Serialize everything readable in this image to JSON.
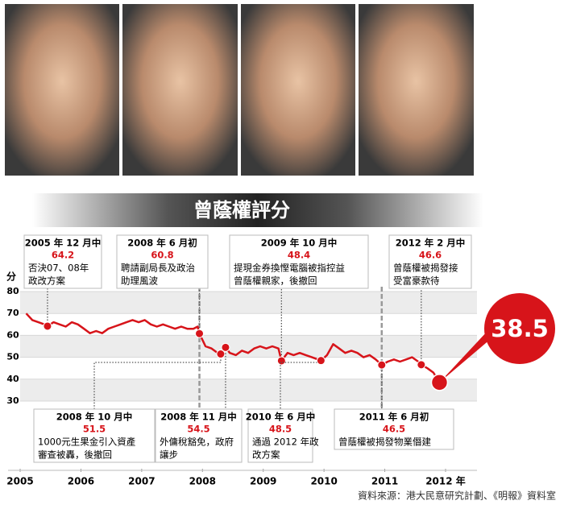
{
  "chart_data": {
    "type": "line",
    "title": "曾蔭權評分",
    "y_label": "分",
    "x": [
      2005.6,
      2005.7,
      2005.8,
      2005.9,
      2005.95,
      2006.05,
      2006.15,
      2006.25,
      2006.35,
      2006.45,
      2006.55,
      2006.65,
      2006.75,
      2006.85,
      2006.95,
      2007.05,
      2007.15,
      2007.25,
      2007.35,
      2007.45,
      2007.55,
      2007.65,
      2007.75,
      2007.85,
      2007.95,
      2008.05,
      2008.15,
      2008.25,
      2008.35,
      2008.42,
      2008.45,
      2008.55,
      2008.65,
      2008.75,
      2008.8,
      2008.88,
      2008.95,
      2009.05,
      2009.15,
      2009.25,
      2009.35,
      2009.45,
      2009.55,
      2009.65,
      2009.75,
      2009.8,
      2009.9,
      2010.0,
      2010.1,
      2010.2,
      2010.3,
      2010.4,
      2010.45,
      2010.55,
      2010.65,
      2010.75,
      2010.85,
      2010.95,
      2011.05,
      2011.15,
      2011.25,
      2011.35,
      2011.45,
      2011.55,
      2011.65,
      2011.75,
      2011.85,
      2011.95,
      2012.05,
      2012.1,
      2012.2,
      2012.3,
      2012.4
    ],
    "series": [
      {
        "color": "#d7141a",
        "values": [
          70,
          67,
          66,
          65,
          64.2,
          66,
          65,
          64,
          66,
          65,
          63,
          61,
          62,
          61,
          63,
          64,
          65,
          66,
          67,
          66,
          67,
          65,
          64,
          65,
          64,
          63,
          64,
          63,
          63,
          64,
          60.8,
          55,
          54,
          52,
          51.5,
          54.5,
          52,
          51,
          53,
          52,
          54,
          55,
          54,
          55,
          54,
          48.4,
          52,
          51,
          52,
          51,
          50,
          49,
          48.5,
          51,
          56,
          54,
          52,
          53,
          52,
          50,
          51,
          49,
          46.5,
          48,
          49,
          48,
          49,
          50,
          48,
          46.6,
          45,
          43,
          38.5
        ]
      }
    ],
    "xlim": [
      2005.5,
      2012.5
    ],
    "xticks": [
      {
        "value": 2005.5,
        "label": "2005"
      },
      {
        "value": 2006.5,
        "label": "2006"
      },
      {
        "value": 2007.5,
        "label": "2007"
      },
      {
        "value": 2008.5,
        "label": "2008"
      },
      {
        "value": 2009.5,
        "label": "2009"
      },
      {
        "value": 2010.5,
        "label": "2010"
      },
      {
        "value": 2011.5,
        "label": "2011"
      },
      {
        "value": 2012.5,
        "label": "2012 年"
      }
    ],
    "ylim": [
      30,
      80
    ],
    "yticks": [
      30,
      40,
      50,
      60,
      70,
      80
    ],
    "annotations": [
      {
        "date": "2005 年 12 月中",
        "x": 2005.95,
        "value": 64.2,
        "text": [
          "否決07、08年",
          "政改方案"
        ]
      },
      {
        "date": "2008 年 6 月初",
        "x": 2008.45,
        "value": 60.8,
        "text": [
          "聘請副局長及政治",
          "助理風波"
        ]
      },
      {
        "date": "2009 年 10 月中",
        "x": 2009.8,
        "value": 48.4,
        "text": [
          "提現金券換慳電腦被指控益",
          "曾蔭權親家，後撤回"
        ]
      },
      {
        "date": "2012 年 2 月中",
        "x": 2012.1,
        "value": 46.6,
        "text": [
          "曾蔭權被揭發接",
          "受富豪款待"
        ]
      },
      {
        "date": "2008 年 10 月中",
        "x": 2008.8,
        "value": 51.5,
        "text": [
          "1000元生果金引入資產",
          "審查被轟，後撤回"
        ]
      },
      {
        "date": "2008 年 11 月中",
        "x": 2008.88,
        "value": 54.5,
        "text": [
          "外傭稅豁免，政府",
          "讓步"
        ]
      },
      {
        "date": "2010 年 6 月中",
        "x": 2010.45,
        "value": 48.5,
        "text": [
          "通過 2012 年政",
          "改方案"
        ]
      },
      {
        "date": "2011 年 6 月初",
        "x": 2011.45,
        "value": 46.5,
        "text": [
          "曾蔭權被揭發物業僭建"
        ]
      }
    ],
    "source": "資料來源：港大民意研究計劃、《明報》資料室"
  }
}
